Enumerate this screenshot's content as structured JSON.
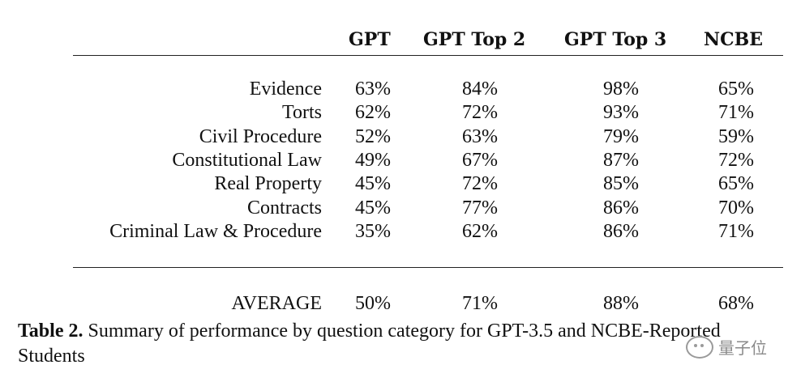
{
  "table": {
    "columns": [
      "GPT",
      "GPT Top 2",
      "GPT Top 3",
      "NCBE"
    ],
    "rows": [
      {
        "label": "Evidence",
        "values": [
          "63%",
          "84%",
          "98%",
          "65%"
        ]
      },
      {
        "label": "Torts",
        "values": [
          "62%",
          "72%",
          "93%",
          "71%"
        ]
      },
      {
        "label": "Civil Procedure",
        "values": [
          "52%",
          "63%",
          "79%",
          "59%"
        ]
      },
      {
        "label": "Constitutional Law",
        "values": [
          "49%",
          "67%",
          "87%",
          "72%"
        ]
      },
      {
        "label": "Real Property",
        "values": [
          "45%",
          "72%",
          "85%",
          "65%"
        ]
      },
      {
        "label": "Contracts",
        "values": [
          "45%",
          "77%",
          "86%",
          "70%"
        ]
      },
      {
        "label": "Criminal Law & Procedure",
        "values": [
          "35%",
          "62%",
          "86%",
          "71%"
        ]
      }
    ],
    "average": {
      "label": "AVERAGE",
      "values": [
        "50%",
        "71%",
        "88%",
        "68%"
      ]
    }
  },
  "caption": {
    "label": "Table 2.",
    "text": "Summary of performance by question category for GPT-3.5 and NCBE-Reported Students"
  },
  "watermark": {
    "text": "量子位",
    "icon": "wechat-icon"
  }
}
